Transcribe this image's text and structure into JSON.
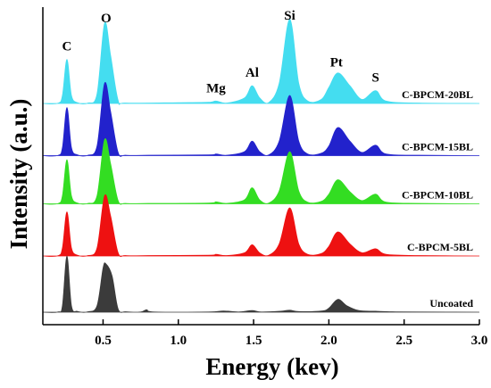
{
  "chart_data": {
    "type": "area",
    "title": "",
    "xlabel": "Energy (kev)",
    "ylabel": "Intensity (a.u.)",
    "xlim": [
      0.1,
      3.0
    ],
    "x_ticks": [
      "0.5",
      "1.0",
      "1.5",
      "2.0",
      "2.5",
      "3.0"
    ],
    "y_ticks_shown": false,
    "peak_labels": [
      {
        "text": "C",
        "x": 0.26
      },
      {
        "text": "O",
        "x": 0.52
      },
      {
        "text": "Mg",
        "x": 1.25
      },
      {
        "text": "Al",
        "x": 1.49
      },
      {
        "text": "Si",
        "x": 1.74
      },
      {
        "text": "Pt",
        "x": 2.05
      },
      {
        "text": "S",
        "x": 2.31
      }
    ],
    "series": [
      {
        "name": "Uncoated",
        "color": "#3b3b3b",
        "offset": 0,
        "points": [
          [
            0.1,
            0
          ],
          [
            0.2,
            0.3
          ],
          [
            0.23,
            8
          ],
          [
            0.26,
            70
          ],
          [
            0.29,
            8
          ],
          [
            0.33,
            1
          ],
          [
            0.4,
            0.5
          ],
          [
            0.46,
            8
          ],
          [
            0.5,
            55
          ],
          [
            0.52,
            60
          ],
          [
            0.56,
            45
          ],
          [
            0.6,
            4
          ],
          [
            0.65,
            0.5
          ],
          [
            0.75,
            0.3
          ],
          [
            0.79,
            3
          ],
          [
            0.84,
            0.3
          ],
          [
            1.2,
            0.3
          ],
          [
            1.3,
            1.5
          ],
          [
            1.4,
            0.3
          ],
          [
            1.49,
            2
          ],
          [
            1.55,
            0.3
          ],
          [
            1.68,
            1.2
          ],
          [
            1.74,
            2.5
          ],
          [
            1.8,
            0.8
          ],
          [
            1.95,
            1.5
          ],
          [
            2.0,
            5
          ],
          [
            2.06,
            16
          ],
          [
            2.12,
            8
          ],
          [
            2.2,
            2
          ],
          [
            2.31,
            1.2
          ],
          [
            2.42,
            0.5
          ],
          [
            2.6,
            0.2
          ],
          [
            3.0,
            0
          ]
        ]
      },
      {
        "name": "C-BPCM-5BL",
        "color": "#ee1111",
        "offset": 70,
        "points": [
          [
            0.1,
            0
          ],
          [
            0.2,
            0.3
          ],
          [
            0.23,
            10
          ],
          [
            0.26,
            55
          ],
          [
            0.29,
            10
          ],
          [
            0.33,
            1
          ],
          [
            0.4,
            0.5
          ],
          [
            0.46,
            10
          ],
          [
            0.51,
            75
          ],
          [
            0.55,
            50
          ],
          [
            0.6,
            4
          ],
          [
            0.65,
            0.5
          ],
          [
            0.8,
            0.5
          ],
          [
            1.2,
            1
          ],
          [
            1.25,
            2
          ],
          [
            1.32,
            0.5
          ],
          [
            1.44,
            4
          ],
          [
            1.49,
            14
          ],
          [
            1.54,
            4
          ],
          [
            1.6,
            0.8
          ],
          [
            1.67,
            15
          ],
          [
            1.74,
            60
          ],
          [
            1.8,
            15
          ],
          [
            1.86,
            2
          ],
          [
            1.95,
            3
          ],
          [
            2.0,
            12
          ],
          [
            2.06,
            30
          ],
          [
            2.14,
            15
          ],
          [
            2.22,
            4
          ],
          [
            2.31,
            9
          ],
          [
            2.38,
            2
          ],
          [
            2.6,
            0.5
          ],
          [
            3.0,
            0
          ]
        ]
      },
      {
        "name": "C-BPCM-10BL",
        "color": "#33dd22",
        "offset": 135,
        "points": [
          [
            0.1,
            0
          ],
          [
            0.2,
            0.3
          ],
          [
            0.23,
            10
          ],
          [
            0.26,
            55
          ],
          [
            0.29,
            10
          ],
          [
            0.33,
            1
          ],
          [
            0.4,
            0.5
          ],
          [
            0.46,
            10
          ],
          [
            0.51,
            80
          ],
          [
            0.55,
            50
          ],
          [
            0.6,
            4
          ],
          [
            0.65,
            0.5
          ],
          [
            0.8,
            0.5
          ],
          [
            1.2,
            1
          ],
          [
            1.25,
            2.5
          ],
          [
            1.32,
            0.5
          ],
          [
            1.44,
            5
          ],
          [
            1.49,
            20
          ],
          [
            1.54,
            5
          ],
          [
            1.6,
            0.8
          ],
          [
            1.67,
            16
          ],
          [
            1.74,
            65
          ],
          [
            1.8,
            16
          ],
          [
            1.86,
            2
          ],
          [
            1.95,
            3
          ],
          [
            2.0,
            12
          ],
          [
            2.06,
            30
          ],
          [
            2.14,
            15
          ],
          [
            2.22,
            4
          ],
          [
            2.31,
            12
          ],
          [
            2.38,
            2
          ],
          [
            2.6,
            0.5
          ],
          [
            3.0,
            0
          ]
        ]
      },
      {
        "name": "C-BPCM-15BL",
        "color": "#2222cc",
        "offset": 195,
        "points": [
          [
            0.1,
            0
          ],
          [
            0.2,
            0.3
          ],
          [
            0.23,
            10
          ],
          [
            0.26,
            60
          ],
          [
            0.29,
            10
          ],
          [
            0.33,
            1
          ],
          [
            0.4,
            0.5
          ],
          [
            0.46,
            12
          ],
          [
            0.51,
            90
          ],
          [
            0.55,
            55
          ],
          [
            0.6,
            4
          ],
          [
            0.65,
            0.5
          ],
          [
            0.8,
            0.5
          ],
          [
            1.2,
            1
          ],
          [
            1.25,
            2
          ],
          [
            1.32,
            0.5
          ],
          [
            1.44,
            5
          ],
          [
            1.49,
            18
          ],
          [
            1.54,
            5
          ],
          [
            1.6,
            0.8
          ],
          [
            1.67,
            18
          ],
          [
            1.74,
            75
          ],
          [
            1.8,
            18
          ],
          [
            1.86,
            2
          ],
          [
            1.95,
            3
          ],
          [
            2.0,
            12
          ],
          [
            2.06,
            35
          ],
          [
            2.14,
            18
          ],
          [
            2.22,
            4
          ],
          [
            2.31,
            13
          ],
          [
            2.38,
            2
          ],
          [
            2.6,
            0.5
          ],
          [
            3.0,
            0
          ]
        ]
      },
      {
        "name": "C-BPCM-20BL",
        "color": "#44ddf0",
        "offset": 260,
        "points": [
          [
            0.1,
            0
          ],
          [
            0.2,
            0.3
          ],
          [
            0.23,
            10
          ],
          [
            0.26,
            55
          ],
          [
            0.29,
            10
          ],
          [
            0.33,
            1
          ],
          [
            0.4,
            0.5
          ],
          [
            0.46,
            12
          ],
          [
            0.51,
            100
          ],
          [
            0.55,
            60
          ],
          [
            0.6,
            4
          ],
          [
            0.65,
            0.5
          ],
          [
            1.0,
            1
          ],
          [
            1.2,
            1.5
          ],
          [
            1.25,
            3
          ],
          [
            1.32,
            0.5
          ],
          [
            1.44,
            7
          ],
          [
            1.49,
            22
          ],
          [
            1.54,
            7
          ],
          [
            1.6,
            1
          ],
          [
            1.67,
            25
          ],
          [
            1.74,
            105
          ],
          [
            1.8,
            25
          ],
          [
            1.86,
            3
          ],
          [
            1.95,
            5
          ],
          [
            2.0,
            20
          ],
          [
            2.06,
            38
          ],
          [
            2.14,
            22
          ],
          [
            2.22,
            5
          ],
          [
            2.31,
            16
          ],
          [
            2.38,
            3
          ],
          [
            2.6,
            0.5
          ],
          [
            3.0,
            0
          ]
        ]
      }
    ]
  }
}
